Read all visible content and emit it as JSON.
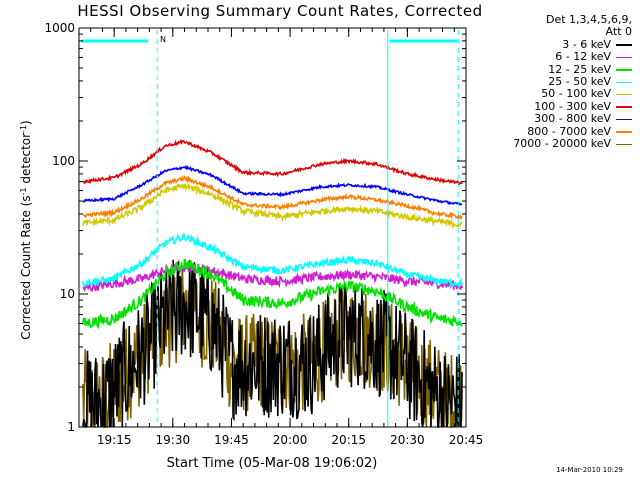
{
  "title": "HESSI Observing Summary Count Rates, Corrected",
  "legend": {
    "header": [
      "Det 1,3,4,5,6,9,",
      "Att 0"
    ],
    "entries": [
      {
        "label": "3 - 6 keV",
        "color": "#000000"
      },
      {
        "label": "6 - 12 keV",
        "color": "#d21ed2"
      },
      {
        "label": "12 - 25 keV",
        "color": "#00e100"
      },
      {
        "label": "25 - 50 keV",
        "color": "#00ffff"
      },
      {
        "label": "50 - 100 keV",
        "color": "#d2c800"
      },
      {
        "label": "100 - 300 keV",
        "color": "#e10000"
      },
      {
        "label": "300 - 800 keV",
        "color": "#0000ff"
      },
      {
        "label": "800 - 7000 keV",
        "color": "#ff7d00"
      },
      {
        "label": "7000 - 20000 keV",
        "color": "#7d6400"
      }
    ]
  },
  "timestamp": "14-Mar-2010 10:29",
  "overlay": {
    "flag_label": "N",
    "color": "#00ffff"
  },
  "chart_data": {
    "type": "line",
    "title": "HESSI Observing Summary Count Rates, Corrected",
    "xlabel": "Start Time (05-Mar-08 19:06:02)",
    "ylabel": "Corrected Count Rate (s-1 detector-1)",
    "yscale": "log",
    "ylim": [
      1,
      1000
    ],
    "xlim_minutes": [
      19.1,
      20.75
    ],
    "x_tick_labels": [
      "19:15",
      "19:30",
      "19:45",
      "20:00",
      "20:15",
      "20:30",
      "20:45"
    ],
    "x_ticks_hours": [
      19.25,
      19.5,
      19.75,
      20.0,
      20.25,
      20.5,
      20.75
    ],
    "y_tick_labels": [
      "1",
      "10",
      "100",
      "1000"
    ],
    "y_ticks": [
      1,
      10,
      100,
      1000
    ],
    "vertical_markers_time": [
      "19:26",
      "20:25",
      "20:43"
    ],
    "segment_bars": [
      {
        "start": "19:06",
        "end": "19:24"
      },
      {
        "start": "20:25",
        "end": "20:43"
      }
    ],
    "series": [
      {
        "name": "3 - 6 keV",
        "color": "#000000",
        "x": [
          "19:07",
          "19:12",
          "19:18",
          "19:22",
          "19:27",
          "19:33",
          "19:40",
          "19:45",
          "19:55",
          "20:05",
          "20:13",
          "20:18",
          "20:25",
          "20:32",
          "20:40",
          "20:44"
        ],
        "values": [
          1.5,
          1.5,
          2.5,
          3.5,
          6,
          8.5,
          6,
          3,
          3,
          3,
          5,
          5,
          4,
          2.5,
          1.5,
          1.5
        ],
        "noise": 0.6
      },
      {
        "name": "6 - 12 keV",
        "color": "#d21ed2",
        "x": [
          "19:07",
          "19:15",
          "19:22",
          "19:28",
          "19:33",
          "19:40",
          "19:48",
          "19:58",
          "20:08",
          "20:15",
          "20:22",
          "20:30",
          "20:38",
          "20:44"
        ],
        "values": [
          11,
          12,
          13,
          15,
          16,
          15,
          13,
          12.5,
          13.5,
          14,
          13.5,
          12.5,
          12,
          11.5
        ],
        "noise": 0.08
      },
      {
        "name": "12 - 25 keV",
        "color": "#00e100",
        "x": [
          "19:07",
          "19:15",
          "19:22",
          "19:28",
          "19:33",
          "19:40",
          "19:48",
          "19:58",
          "20:08",
          "20:15",
          "20:22",
          "20:30",
          "20:38",
          "20:44"
        ],
        "values": [
          6,
          6.5,
          9,
          14,
          17,
          14,
          9,
          8.5,
          10.5,
          11.5,
          10.5,
          8,
          6.5,
          6.2
        ],
        "noise": 0.1
      },
      {
        "name": "25 - 50 keV",
        "color": "#00ffff",
        "x": [
          "19:07",
          "19:15",
          "19:22",
          "19:28",
          "19:33",
          "19:40",
          "19:48",
          "19:58",
          "20:08",
          "20:15",
          "20:22",
          "20:30",
          "20:38",
          "20:44"
        ],
        "values": [
          12,
          13,
          17,
          24,
          27,
          22,
          16,
          15,
          17,
          18,
          17,
          14,
          12.5,
          12
        ],
        "noise": 0.06
      },
      {
        "name": "50 - 100 keV",
        "color": "#d2c800",
        "x": [
          "19:07",
          "19:15",
          "19:22",
          "19:28",
          "19:33",
          "19:40",
          "19:48",
          "19:58",
          "20:08",
          "20:15",
          "20:22",
          "20:30",
          "20:38",
          "20:44"
        ],
        "values": [
          34,
          36,
          45,
          60,
          65,
          56,
          42,
          38,
          42,
          44,
          42,
          38,
          35,
          33
        ],
        "noise": 0.05
      },
      {
        "name": "100 - 300 keV",
        "color": "#e10000",
        "x": [
          "19:07",
          "19:15",
          "19:22",
          "19:28",
          "19:33",
          "19:40",
          "19:48",
          "19:58",
          "20:08",
          "20:15",
          "20:22",
          "20:30",
          "20:38",
          "20:44"
        ],
        "values": [
          70,
          75,
          95,
          130,
          140,
          115,
          82,
          80,
          95,
          100,
          95,
          80,
          72,
          68
        ],
        "noise": 0.025
      },
      {
        "name": "300 - 800 keV",
        "color": "#0000ff",
        "x": [
          "19:07",
          "19:15",
          "19:22",
          "19:28",
          "19:33",
          "19:40",
          "19:48",
          "19:58",
          "20:08",
          "20:15",
          "20:22",
          "20:30",
          "20:38",
          "20:44"
        ],
        "values": [
          50,
          52,
          66,
          84,
          90,
          78,
          57,
          56,
          64,
          66,
          64,
          56,
          50,
          47
        ],
        "noise": 0.02
      },
      {
        "name": "800 - 7000 keV",
        "color": "#ff7d00",
        "x": [
          "19:07",
          "19:15",
          "19:22",
          "19:28",
          "19:33",
          "19:40",
          "19:48",
          "19:58",
          "20:08",
          "20:15",
          "20:22",
          "20:30",
          "20:38",
          "20:44"
        ],
        "values": [
          39,
          41,
          52,
          68,
          74,
          63,
          47,
          45,
          51,
          54,
          51,
          46,
          40,
          38
        ],
        "noise": 0.03
      },
      {
        "name": "7000 - 20000 keV",
        "color": "#7d6400",
        "x": [
          "19:07",
          "19:12",
          "19:18",
          "19:22",
          "19:27",
          "19:33",
          "19:40",
          "19:45",
          "19:55",
          "20:05",
          "20:13",
          "20:18",
          "20:25",
          "20:32",
          "20:40",
          "20:44"
        ],
        "values": [
          1.6,
          1.6,
          2.5,
          3.5,
          6,
          8,
          6,
          3,
          3,
          3,
          5,
          5,
          4,
          2.5,
          1.6,
          1.6
        ],
        "noise": 0.55
      }
    ]
  }
}
